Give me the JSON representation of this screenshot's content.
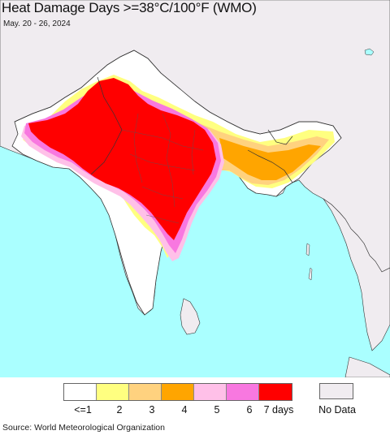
{
  "title": "Heat Damage Days >=38°C/100°F (WMO)",
  "subtitle": "May. 20 - 26, 2024",
  "source": "Source: World Meteorological Organization",
  "legend": {
    "items": [
      {
        "label": "<=1",
        "color": "#ffffff"
      },
      {
        "label": "2",
        "color": "#ffff80"
      },
      {
        "label": "3",
        "color": "#ffd27f"
      },
      {
        "label": "4",
        "color": "#ffa500"
      },
      {
        "label": "5",
        "color": "#ffc0e8"
      },
      {
        "label": "6",
        "color": "#f878e0"
      },
      {
        "label": "7 days",
        "color": "#ff0000"
      }
    ],
    "no_data": {
      "label": "No Data",
      "color": "#f0ecf0"
    }
  },
  "colors": {
    "ocean": "#aaffff",
    "no_data_land": "#f0ecf0",
    "border": "#333333"
  }
}
